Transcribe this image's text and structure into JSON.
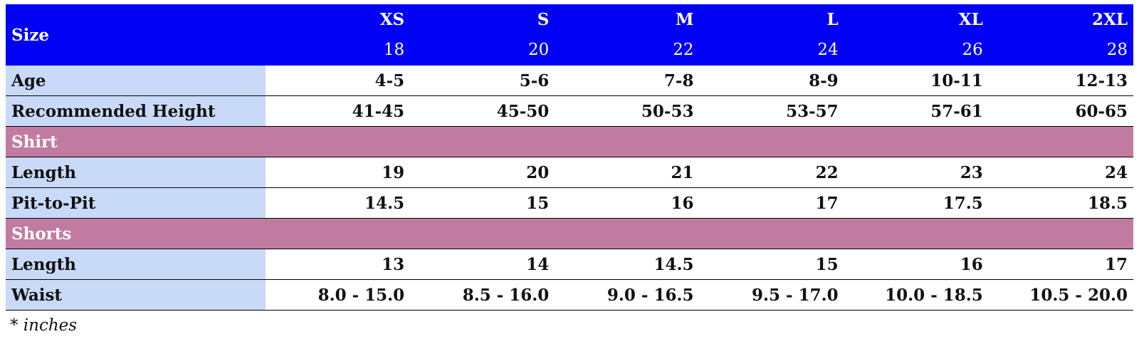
{
  "header": {
    "label": "Size",
    "columns": [
      {
        "size": "XS",
        "number": "18"
      },
      {
        "size": "S",
        "number": "20"
      },
      {
        "size": "M",
        "number": "22"
      },
      {
        "size": "L",
        "number": "24"
      },
      {
        "size": "XL",
        "number": "26"
      },
      {
        "size": "2XL",
        "number": "28"
      }
    ]
  },
  "rows": [
    {
      "label": "Age",
      "values": [
        "4-5",
        "5-6",
        "7-8",
        "8-9",
        "10-11",
        "12-13"
      ]
    },
    {
      "label": "Recommended Height",
      "values": [
        "41-45",
        "45-50",
        "50-53",
        "53-57",
        "57-61",
        "60-65"
      ]
    },
    {
      "section": "Shirt"
    },
    {
      "label": "Length",
      "values": [
        "19",
        "20",
        "21",
        "22",
        "23",
        "24"
      ]
    },
    {
      "label": "Pit-to-Pit",
      "values": [
        "14.5",
        "15",
        "16",
        "17",
        "17.5",
        "18.5"
      ]
    },
    {
      "section": "Shorts"
    },
    {
      "label": "Length",
      "values": [
        "13",
        "14",
        "14.5",
        "15",
        "16",
        "17"
      ]
    },
    {
      "label": "Waist",
      "values": [
        "8.0 - 15.0",
        "8.5 - 16.0",
        "9.0 - 16.5",
        "9.5 - 17.0",
        "10.0 - 18.5",
        "10.5 - 20.0"
      ]
    }
  ],
  "footnote": "* inches"
}
